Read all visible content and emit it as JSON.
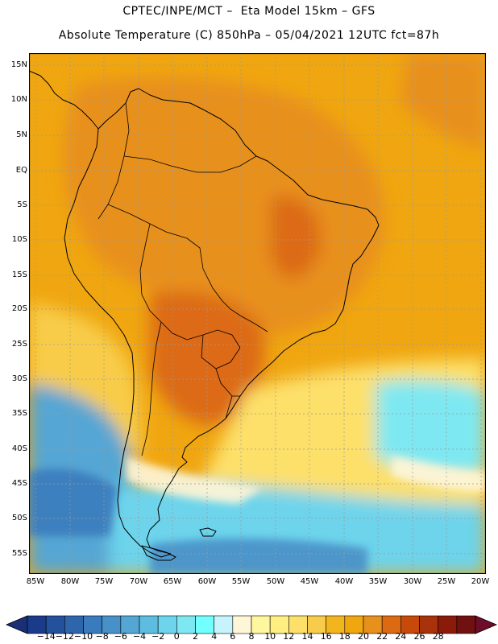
{
  "header": {
    "line1": "CPTEC/INPE/MCT –  Eta Model 15km – GFS",
    "line2": "Absolute Temperature (C) 850hPa – 05/04/2021 12UTC fct=87h"
  },
  "map": {
    "region": "South America",
    "lat_labels": [
      "15N",
      "10N",
      "5N",
      "EQ",
      "5S",
      "10S",
      "15S",
      "20S",
      "25S",
      "30S",
      "35S",
      "40S",
      "45S",
      "50S",
      "55S"
    ],
    "lon_labels": [
      "85W",
      "80W",
      "75W",
      "70W",
      "65W",
      "60W",
      "55W",
      "50W",
      "45W",
      "40W",
      "35W",
      "30W",
      "25W",
      "20W"
    ]
  },
  "colorbar": {
    "labels": [
      "-14",
      "-12",
      "-10",
      "-8",
      "-6",
      "-4",
      "-2",
      "0",
      "2",
      "4",
      "6",
      "8",
      "10",
      "12",
      "14",
      "16",
      "18",
      "20",
      "22",
      "24",
      "26",
      "28"
    ],
    "colors": [
      "#1a3a8a",
      "#24519c",
      "#2e66ac",
      "#3a7bbd",
      "#4890c8",
      "#54a6d4",
      "#5cbde0",
      "#6dd4ec",
      "#7ee8f2",
      "#72ffff",
      "#c7f4fc",
      "#fff6d8",
      "#fff6a0",
      "#ffee82",
      "#fde06a",
      "#f8cc4a",
      "#f2b51e",
      "#f0a610",
      "#e8901c",
      "#dc6a12",
      "#c84a0a",
      "#a8320a",
      "#8c1a0a",
      "#701010"
    ],
    "under_color": "#1a2f78",
    "over_color": "#6e0c2a"
  }
}
